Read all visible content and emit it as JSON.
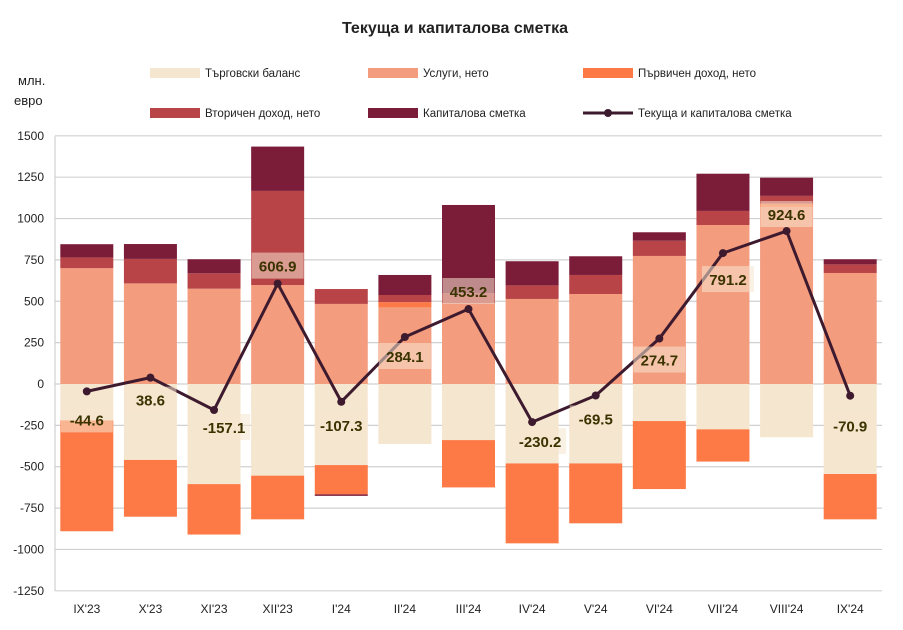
{
  "chart_data": {
    "type": "bar",
    "stacked": true,
    "title": "Текуща и капиталова сметка",
    "ylabel": [
      "млн.",
      "евро"
    ],
    "xlabel": "",
    "ylim": [
      -1250,
      1500
    ],
    "yticks": [
      -1250,
      -1000,
      -750,
      -500,
      -250,
      0,
      250,
      500,
      750,
      1000,
      1250,
      1500
    ],
    "grid": true,
    "legend_position": "top",
    "categories": [
      "IX'23",
      "X'23",
      "XI'23",
      "XII'23",
      "I'24",
      "II'24",
      "III'24",
      "IV'24",
      "V'24",
      "VI'24",
      "VII'24",
      "VIII'24",
      "IX'24"
    ],
    "series": [
      {
        "name": "Търговски баланс",
        "color": "#f5e6cf",
        "values": [
          -220,
          -459,
          -605,
          -554,
          -490,
          -363,
          -339,
          -480,
          -480,
          -224,
          -274,
          -322,
          -544
        ]
      },
      {
        "name": "Услуги, нето",
        "color": "#f49c7e",
        "values": [
          700,
          608,
          576,
          598,
          484,
          463,
          488,
          514,
          544,
          774,
          961,
          1070,
          671
        ]
      },
      {
        "name": "Първичен доход, нето",
        "color": "#fd7a46",
        "values": [
          -670,
          -343,
          -305,
          -264,
          -177,
          32,
          -286,
          -483,
          -362,
          -411,
          -195,
          20,
          -274
        ]
      },
      {
        "name": "Вторичен доход, нето",
        "color": "#b84447",
        "values": [
          65,
          148,
          93,
          569,
          90,
          43,
          60,
          82,
          115,
          92,
          85,
          47,
          52
        ]
      },
      {
        "name": "Капиталова сметка",
        "color": "#7b1c38",
        "values": [
          80,
          90,
          85,
          268,
          -8,
          121,
          534,
          146,
          113,
          51,
          225,
          110,
          31
        ]
      }
    ],
    "line": {
      "name": "Текуща и капиталова сметка",
      "color": "#3d1a2e",
      "values": [
        -44.6,
        38.6,
        -157.1,
        606.9,
        -107.3,
        284.1,
        453.2,
        -230.2,
        -69.5,
        274.7,
        791.2,
        924.6,
        -70.9
      ],
      "labels": [
        "-44.6",
        "38.6",
        "-157.1",
        "606.9",
        "-107.3",
        "284.1",
        "453.2",
        "-230.2",
        "-69.5",
        "274.7",
        "791.2",
        "924.6",
        "-70.9"
      ]
    }
  }
}
